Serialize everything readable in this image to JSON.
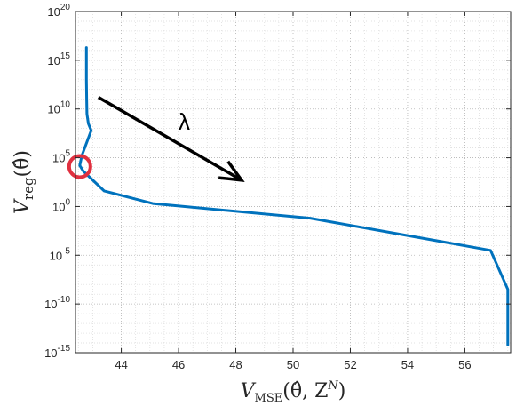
{
  "chart_data": {
    "type": "line",
    "xlabel": {
      "main": "V",
      "sub": "MSE",
      "args": "(θ̂, Z",
      "sup": "N",
      "close": ")"
    },
    "ylabel": {
      "main": "V",
      "sub": "reg",
      "args": "(θ̂)"
    },
    "xlim": [
      42.4,
      57.6
    ],
    "ylim": [
      -15,
      20
    ],
    "yscale": "log",
    "grid": "on (major and minor, dotted)",
    "xticks": [
      44,
      46,
      48,
      50,
      52,
      54,
      56
    ],
    "xtick_labels": [
      "44",
      "46",
      "48",
      "50",
      "52",
      "54",
      "56"
    ],
    "ytick_labels": [
      {
        "base": "10",
        "exp": "-15"
      },
      {
        "base": "10",
        "exp": "-10"
      },
      {
        "base": "10",
        "exp": "-5"
      },
      {
        "base": "10",
        "exp": "0"
      },
      {
        "base": "10",
        "exp": "5"
      },
      {
        "base": "10",
        "exp": "10"
      },
      {
        "base": "10",
        "exp": "15"
      },
      {
        "base": "10",
        "exp": "20"
      }
    ],
    "series": [
      {
        "color": "#0072BD",
        "x": [
          42.78,
          42.78,
          42.79,
          42.8,
          42.85,
          42.95,
          42.62,
          42.55,
          42.68,
          43.4,
          45.1,
          50.6,
          56.9,
          57.5,
          57.5
        ],
        "y": [
          16.3,
          13.0,
          11.0,
          9.5,
          8.5,
          7.8,
          5.2,
          4.2,
          3.6,
          1.6,
          0.3,
          -1.2,
          -4.5,
          -8.5,
          -14.2
        ]
      }
    ],
    "annotations": [
      {
        "text": "λ",
        "color": "#000000"
      },
      {
        "type": "arrow",
        "from": [
          43.2,
          11.2
        ],
        "to": [
          48.2,
          2.7
        ],
        "color": "#000000"
      },
      {
        "type": "circle",
        "center": [
          42.55,
          4.1
        ],
        "color": "#E0303F"
      }
    ]
  }
}
